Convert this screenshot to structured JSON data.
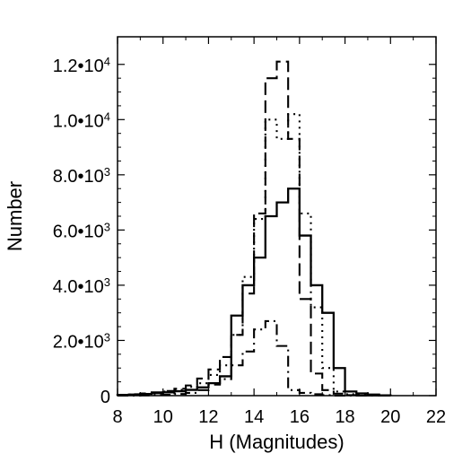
{
  "chart_data": {
    "type": "histogram-step",
    "title": "",
    "xlabel": "H (Magnitudes)",
    "ylabel": "Number",
    "xlim": [
      8,
      22
    ],
    "ylim": [
      0,
      13000
    ],
    "x_ticks": [
      8,
      10,
      12,
      14,
      16,
      18,
      20,
      22
    ],
    "x_tick_labels": [
      "8",
      "10",
      "12",
      "14",
      "16",
      "18",
      "20",
      "22"
    ],
    "y_ticks": [
      0,
      2000,
      4000,
      6000,
      8000,
      10000,
      12000
    ],
    "y_tick_labels": [
      {
        "mantissa": "0",
        "exponent": ""
      },
      {
        "mantissa": "2.0•10",
        "exponent": "3"
      },
      {
        "mantissa": "4.0•10",
        "exponent": "3"
      },
      {
        "mantissa": "6.0•10",
        "exponent": "3"
      },
      {
        "mantissa": "8.0•10",
        "exponent": "3"
      },
      {
        "mantissa": "1.0•10",
        "exponent": "4"
      },
      {
        "mantissa": "1.2•10",
        "exponent": "4"
      }
    ],
    "bin_edges": [
      8.0,
      8.5,
      9.0,
      9.5,
      10.0,
      10.5,
      11.0,
      11.5,
      12.0,
      12.5,
      13.0,
      13.5,
      14.0,
      14.5,
      15.0,
      15.5,
      16.0,
      16.5,
      17.0,
      17.5,
      18.0,
      18.5,
      19.0,
      19.5,
      20.0
    ],
    "series": [
      {
        "style": "solid",
        "values": [
          20,
          40,
          60,
          90,
          120,
          160,
          210,
          300,
          450,
          700,
          2900,
          4000,
          5000,
          6500,
          7000,
          7500,
          5800,
          4000,
          3000,
          1000,
          150,
          80,
          40,
          10
        ]
      },
      {
        "style": "dashed",
        "values": [
          30,
          50,
          80,
          120,
          170,
          250,
          370,
          620,
          950,
          1400,
          2200,
          3700,
          6600,
          11500,
          12100,
          9300,
          3500,
          800,
          200,
          70,
          20,
          10,
          5,
          0
        ]
      },
      {
        "style": "dotted",
        "values": [
          20,
          40,
          60,
          100,
          150,
          210,
          320,
          450,
          750,
          1100,
          2200,
          4300,
          6400,
          10000,
          9300,
          10200,
          6600,
          3200,
          1000,
          150,
          50,
          20,
          10,
          0
        ]
      },
      {
        "style": "dashdot",
        "values": [
          0,
          0,
          10,
          20,
          30,
          60,
          100,
          200,
          400,
          600,
          1100,
          1600,
          2400,
          2700,
          1800,
          200,
          100,
          50,
          20,
          0,
          0,
          0,
          0,
          0
        ]
      }
    ]
  }
}
